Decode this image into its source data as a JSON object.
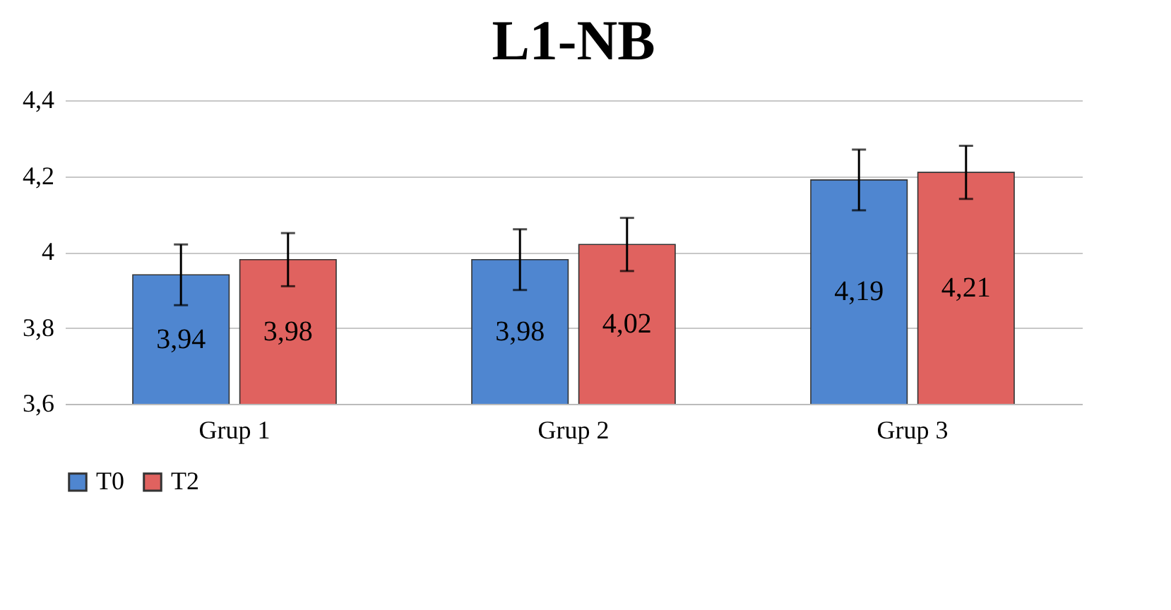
{
  "chart_data": {
    "type": "bar",
    "title": "L1-NB",
    "categories": [
      "Grup 1",
      "Grup 2",
      "Grup 3"
    ],
    "series": [
      {
        "name": "T0",
        "color": "#4f86d0",
        "values": [
          3.94,
          3.98,
          4.19
        ],
        "errors": [
          0.08,
          0.08,
          0.08
        ],
        "value_labels": [
          "3,94",
          "3,98",
          "4,19"
        ]
      },
      {
        "name": "T2",
        "color": "#e0625f",
        "values": [
          3.98,
          4.02,
          4.21
        ],
        "errors": [
          0.07,
          0.07,
          0.07
        ],
        "value_labels": [
          "3,98",
          "4,02",
          "4,21"
        ]
      }
    ],
    "ylim": [
      3.6,
      4.4
    ],
    "yticks": [
      {
        "value": 3.6,
        "label": "3,6"
      },
      {
        "value": 3.8,
        "label": "3,8"
      },
      {
        "value": 4,
        "label": "4"
      },
      {
        "value": 4.2,
        "label": "4,2"
      },
      {
        "value": 4.4,
        "label": "4,4"
      }
    ],
    "grid": "y",
    "legend": "bottom"
  }
}
